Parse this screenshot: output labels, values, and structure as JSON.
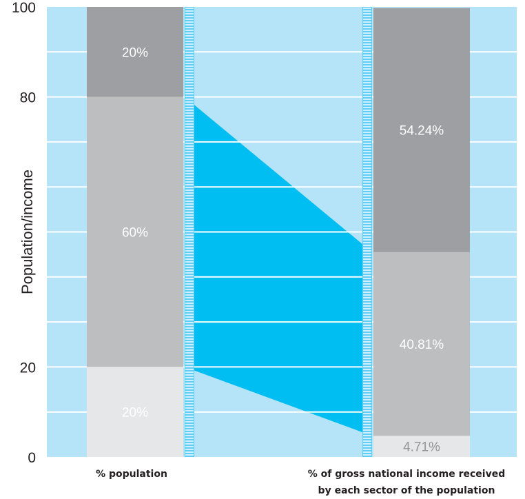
{
  "chart_data": {
    "type": "bar",
    "stacked": true,
    "ylabel": "Population/income",
    "ylim": [
      0,
      100
    ],
    "y_ticks": [
      0,
      20,
      80,
      100
    ],
    "categories": [
      "% population",
      "% of gross national income received by each sector of the population"
    ],
    "category_label_lines": [
      [
        "% population"
      ],
      [
        "% of gross national income received",
        "by each sector of the population"
      ]
    ],
    "stacks": [
      {
        "category": "% population",
        "segments": [
          {
            "value": 20,
            "label": "20%",
            "color": "#e6e7e8"
          },
          {
            "value": 60,
            "label": "60%",
            "color": "#bcbec0"
          },
          {
            "value": 20,
            "label": "20%",
            "color": "#9d9fa2"
          }
        ]
      },
      {
        "category": "% of gross national income received by each sector of the population",
        "segments": [
          {
            "value": 4.71,
            "label": "4.71%",
            "color": "#e6e7e8"
          },
          {
            "value": 40.81,
            "label": "40.81%",
            "color": "#bcbec0"
          },
          {
            "value": 54.24,
            "label": "54.24%",
            "color": "#9d9fa2"
          }
        ]
      }
    ],
    "connector": {
      "from_category": 0,
      "to_category": 1,
      "from_range": [
        20,
        80
      ],
      "to_range": [
        4.71,
        45.52
      ],
      "color": "#00bdf2"
    },
    "grid": true,
    "colors": {
      "plot_bg": "#b5e4f8",
      "gridline": "#ffffff",
      "divider": "#5fcdf5"
    }
  }
}
